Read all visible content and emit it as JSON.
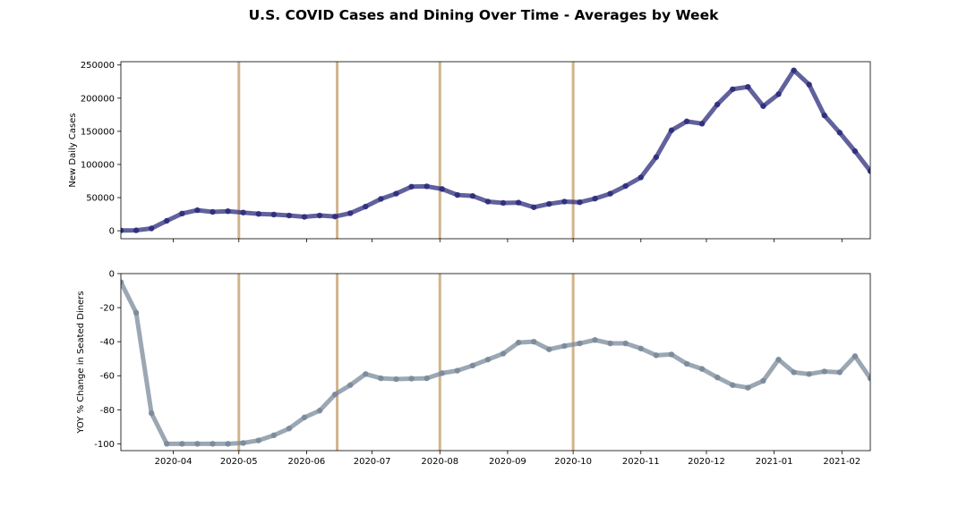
{
  "title": "U.S. COVID Cases and Dining Over Time - Averages by Week",
  "chart_data": [
    {
      "type": "line",
      "ylabel": "New Daily Cases",
      "xlabel": "",
      "x_start": "2020-03-08",
      "x_step_days": 7,
      "xlim": [
        "2020-03-08",
        "2021-02-14"
      ],
      "ylim": [
        -12000,
        255000
      ],
      "yticks": [
        0,
        50000,
        100000,
        150000,
        200000,
        250000
      ],
      "xticks": [
        "2020-04",
        "2020-05",
        "2020-06",
        "2020-07",
        "2020-08",
        "2020-09",
        "2020-10",
        "2020-11",
        "2020-12",
        "2021-01",
        "2021-02"
      ],
      "vlines": [
        "2020-05-01",
        "2020-06-15",
        "2020-08-01",
        "2020-10-01"
      ],
      "vline_color": "#d2b48c",
      "series": [
        {
          "color": "#2c2c7c",
          "values": [
            500,
            700,
            3500,
            15000,
            26000,
            31000,
            28500,
            29500,
            27500,
            25500,
            24500,
            23000,
            21000,
            23000,
            21500,
            26500,
            36500,
            48000,
            56000,
            66500,
            67000,
            63000,
            54000,
            52500,
            44000,
            42000,
            42500,
            35500,
            40500,
            44000,
            43000,
            48500,
            56000,
            67500,
            80500,
            111000,
            151500,
            165000,
            161500,
            190500,
            213500,
            217000,
            188000,
            206000,
            242000,
            220500,
            174000,
            148000,
            120000,
            90000
          ]
        }
      ]
    },
    {
      "type": "line",
      "ylabel": "YOY % Change in Seated Diners",
      "xlabel": "",
      "x_start": "2020-03-08",
      "x_step_days": 7,
      "xlim": [
        "2020-03-08",
        "2021-02-14"
      ],
      "ylim": [
        -104,
        0
      ],
      "yticks": [
        0,
        -20,
        -40,
        -60,
        -80,
        -100
      ],
      "xticks": [
        "2020-04",
        "2020-05",
        "2020-06",
        "2020-07",
        "2020-08",
        "2020-09",
        "2020-10",
        "2020-11",
        "2020-12",
        "2021-01",
        "2021-02"
      ],
      "vlines": [
        "2020-05-01",
        "2020-06-15",
        "2020-08-01",
        "2020-10-01"
      ],
      "vline_color": "#d2b48c",
      "series": [
        {
          "color": "#7a8a9a",
          "values": [
            -5,
            -23,
            -82,
            -100,
            -100,
            -100,
            -100,
            -100,
            -99.5,
            -98,
            -95,
            -91,
            -84.5,
            -80.5,
            -71,
            -65.5,
            -59,
            -61.5,
            -62,
            -61.7,
            -61.5,
            -58.5,
            -57,
            -54,
            -50.5,
            -47,
            -40.5,
            -40,
            -44.5,
            -42.5,
            -41,
            -39,
            -41,
            -41,
            -44,
            -48,
            -47.5,
            -53,
            -56,
            -61,
            -65.5,
            -67,
            -63,
            -50.5,
            -58,
            -59,
            -57.5,
            -58,
            -48.5,
            -61.5
          ]
        }
      ]
    }
  ]
}
